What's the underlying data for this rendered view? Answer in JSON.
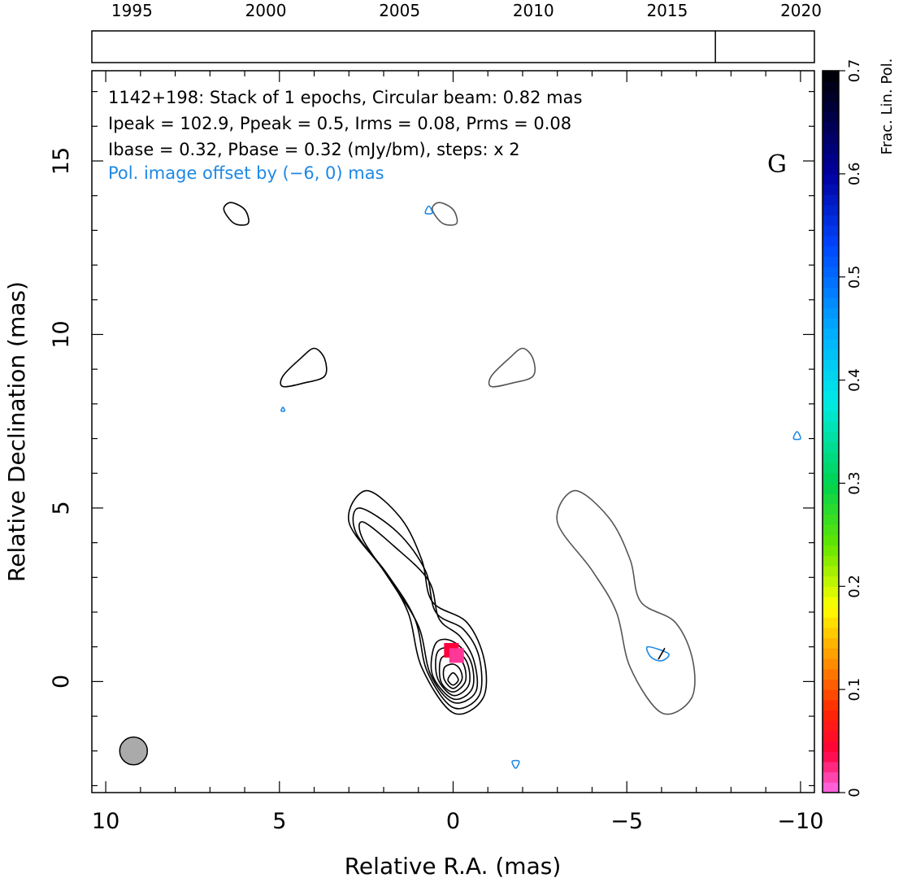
{
  "timeline": {
    "tick_labels": [
      "1995",
      "2000",
      "2005",
      "2010",
      "2015",
      "2020"
    ],
    "tick_years": [
      1995,
      2000,
      2005,
      2010,
      2015,
      2020
    ],
    "range": [
      1993.5,
      2020.5
    ],
    "epoch_marks": [
      2016.8
    ]
  },
  "header": {
    "line1": "1142+198: Stack of 1 epochs, Circular beam: 0.82 mas",
    "line2": "Ipeak = 102.9, Ppeak = 0.5, Irms = 0.08, Prms = 0.08",
    "line3": "Ibase = 0.32, Pbase = 0.32 (mJy/bm), steps: x 2",
    "line4": "Pol. image offset by (−6, 0) mas",
    "grade": "G"
  },
  "colorbar": {
    "label": "Frac. Lin. Pol.",
    "tick_labels": [
      "0",
      "0.1",
      "0.2",
      "0.3",
      "0.4",
      "0.5",
      "0.6",
      "0.7"
    ],
    "range": [
      0,
      0.7
    ]
  },
  "colors": {
    "total_intensity_contour": "#000000",
    "pol_offset_contour": "#555555",
    "pol_intensity_contour": "#1e88e5",
    "pol_text": "#1e88e5",
    "beam_fill": "#aaaaaa"
  },
  "chart_data": {
    "type": "contour",
    "xlabel": "Relative R.A. (mas)",
    "ylabel": "Relative Declination (mas)",
    "xlim": [
      10.4,
      -10.4
    ],
    "ylim": [
      -3.2,
      17.6
    ],
    "x_ticks": [
      10,
      5,
      0,
      -5,
      -10
    ],
    "x_tick_labels": [
      "10",
      "5",
      "0",
      "−5",
      "−10"
    ],
    "y_ticks": [
      0,
      5,
      10,
      15
    ],
    "y_tick_labels": [
      "0",
      "5",
      "10",
      "15"
    ],
    "beam": {
      "ra": 9.2,
      "dec": -2.0,
      "diameter_mas": 0.82
    },
    "total_intensity_contours": [
      [
        [
          0.0,
          -0.9
        ],
        [
          -0.85,
          -0.5
        ],
        [
          -0.9,
          0.6
        ],
        [
          -0.4,
          1.7
        ],
        [
          0.6,
          2.3
        ],
        [
          0.9,
          3.5
        ],
        [
          1.5,
          4.7
        ],
        [
          2.5,
          5.5
        ],
        [
          3.0,
          4.6
        ],
        [
          2.0,
          3.2
        ],
        [
          1.3,
          2.0
        ],
        [
          0.9,
          0.4
        ]
      ],
      [
        [
          0.0,
          -0.75
        ],
        [
          -0.75,
          -0.4
        ],
        [
          -0.75,
          0.7
        ],
        [
          -0.3,
          1.5
        ],
        [
          0.5,
          2.0
        ],
        [
          0.8,
          3.2
        ],
        [
          1.6,
          4.3
        ],
        [
          2.7,
          5.0
        ],
        [
          2.8,
          4.3
        ],
        [
          1.9,
          3.1
        ],
        [
          1.1,
          1.8
        ],
        [
          0.75,
          0.3
        ]
      ],
      [
        [
          0.0,
          -0.6
        ],
        [
          -0.65,
          -0.3
        ],
        [
          -0.6,
          0.6
        ],
        [
          -0.2,
          1.3
        ],
        [
          0.4,
          1.8
        ],
        [
          0.7,
          2.9
        ],
        [
          1.7,
          3.9
        ],
        [
          2.6,
          4.6
        ],
        [
          2.6,
          4.1
        ],
        [
          1.8,
          2.9
        ],
        [
          1.0,
          1.6
        ],
        [
          0.65,
          0.2
        ]
      ],
      [
        [
          0.0,
          -0.5
        ],
        [
          -0.55,
          -0.2
        ],
        [
          -0.5,
          0.6
        ],
        [
          0.0,
          1.15
        ],
        [
          0.5,
          1.1
        ],
        [
          0.6,
          0.2
        ]
      ],
      [
        [
          0.0,
          -0.4
        ],
        [
          -0.45,
          -0.1
        ],
        [
          -0.4,
          0.55
        ],
        [
          0.0,
          0.95
        ],
        [
          0.45,
          0.85
        ],
        [
          0.45,
          0.1
        ]
      ],
      [
        [
          0.0,
          -0.3
        ],
        [
          -0.35,
          0.0
        ],
        [
          -0.3,
          0.5
        ],
        [
          0.0,
          0.75
        ],
        [
          0.35,
          0.65
        ],
        [
          0.35,
          0.0
        ]
      ],
      [
        [
          0.0,
          -0.2
        ],
        [
          -0.25,
          0.05
        ],
        [
          -0.2,
          0.35
        ],
        [
          0.0,
          0.5
        ],
        [
          0.25,
          0.4
        ],
        [
          0.25,
          0.05
        ]
      ],
      [
        [
          0.0,
          -0.1
        ],
        [
          -0.15,
          0.05
        ],
        [
          0.0,
          0.25
        ],
        [
          0.15,
          0.05
        ]
      ],
      [
        [
          4.9,
          8.8
        ],
        [
          4.4,
          9.3
        ],
        [
          4.0,
          9.6
        ],
        [
          3.7,
          9.3
        ],
        [
          3.7,
          8.8
        ],
        [
          4.3,
          8.6
        ],
        [
          4.9,
          8.5
        ]
      ],
      [
        [
          6.4,
          13.8
        ],
        [
          6.0,
          13.6
        ],
        [
          5.9,
          13.2
        ],
        [
          6.3,
          13.2
        ],
        [
          6.6,
          13.6
        ]
      ]
    ],
    "pol_intensity_contours": [
      [
        [
          -5.6,
          1.0
        ],
        [
          -6.2,
          0.8
        ],
        [
          -6.0,
          0.6
        ],
        [
          -5.7,
          0.7
        ]
      ],
      [
        [
          0.8,
          13.5
        ],
        [
          0.6,
          13.5
        ],
        [
          0.7,
          13.7
        ]
      ],
      [
        [
          -1.8,
          -2.5
        ],
        [
          -1.9,
          -2.3
        ],
        [
          -1.7,
          -2.3
        ]
      ],
      [
        [
          -9.8,
          7.0
        ],
        [
          -9.9,
          7.2
        ],
        [
          -10.0,
          7.0
        ]
      ],
      [
        [
          4.9,
          7.9
        ],
        [
          4.85,
          7.8
        ],
        [
          4.95,
          7.8
        ]
      ]
    ],
    "fractional_pol_pixels": [
      {
        "ra": 0.05,
        "dec": 0.9,
        "frac_pol": 0.04
      },
      {
        "ra": -0.1,
        "dec": 0.75,
        "frac_pol": 0.02
      }
    ],
    "evpa_sticks": [
      {
        "ra": -6.0,
        "dec": 0.8,
        "angle_deg": 30
      }
    ]
  }
}
